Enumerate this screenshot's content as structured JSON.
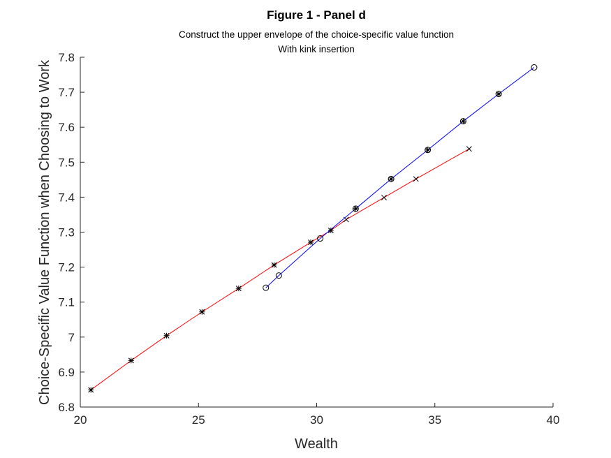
{
  "chart_data": {
    "type": "line",
    "title": "Figure 1 - Panel d",
    "subtitle_lines": [
      "Construct the upper envelope of the choice-specific value function",
      "With kink insertion"
    ],
    "xlabel": "Wealth",
    "ylabel": "Choice-Specific Value Function when Choosing to Work",
    "xlim": [
      20,
      40
    ],
    "ylim": [
      6.8,
      7.8
    ],
    "xticks": [
      20,
      25,
      30,
      35,
      40
    ],
    "xtick_labels": [
      "20",
      "25",
      "30",
      "35",
      "40"
    ],
    "yticks": [
      6.8,
      6.9,
      7.0,
      7.1,
      7.2,
      7.3,
      7.4,
      7.5,
      7.6,
      7.7,
      7.8
    ],
    "ytick_labels": [
      "6.8",
      "6.9",
      "7",
      "7.1",
      "7.2",
      "7.3",
      "7.4",
      "7.5",
      "7.6",
      "7.7",
      "7.8"
    ],
    "grid": false,
    "legend": "none",
    "series": [
      {
        "color": "#ff0000",
        "marker": "x",
        "x": [
          20.45,
          22.15,
          23.65,
          25.15,
          26.7,
          28.2,
          29.75,
          30.6,
          31.25,
          32.85,
          34.2,
          36.45
        ],
        "y": [
          6.849,
          6.933,
          7.004,
          7.072,
          7.139,
          7.206,
          7.271,
          7.305,
          7.336,
          7.399,
          7.452,
          7.538
        ]
      },
      {
        "color": "#0000ff",
        "marker": "o",
        "x": [
          27.85,
          28.4,
          30.15,
          31.65,
          33.15,
          34.7,
          36.2,
          37.7,
          39.2
        ],
        "y": [
          7.141,
          7.176,
          7.282,
          7.367,
          7.452,
          7.535,
          7.617,
          7.695,
          7.771
        ]
      },
      {
        "color": "#000000",
        "marker": "*",
        "x": [
          20.45,
          22.15,
          23.65,
          25.15,
          26.7,
          28.2,
          29.75,
          30.6,
          31.65,
          33.15,
          34.7,
          36.2,
          37.7
        ],
        "y": [
          6.849,
          6.933,
          7.004,
          7.072,
          7.139,
          7.206,
          7.271,
          7.305,
          7.367,
          7.452,
          7.535,
          7.617,
          7.695
        ]
      }
    ]
  }
}
